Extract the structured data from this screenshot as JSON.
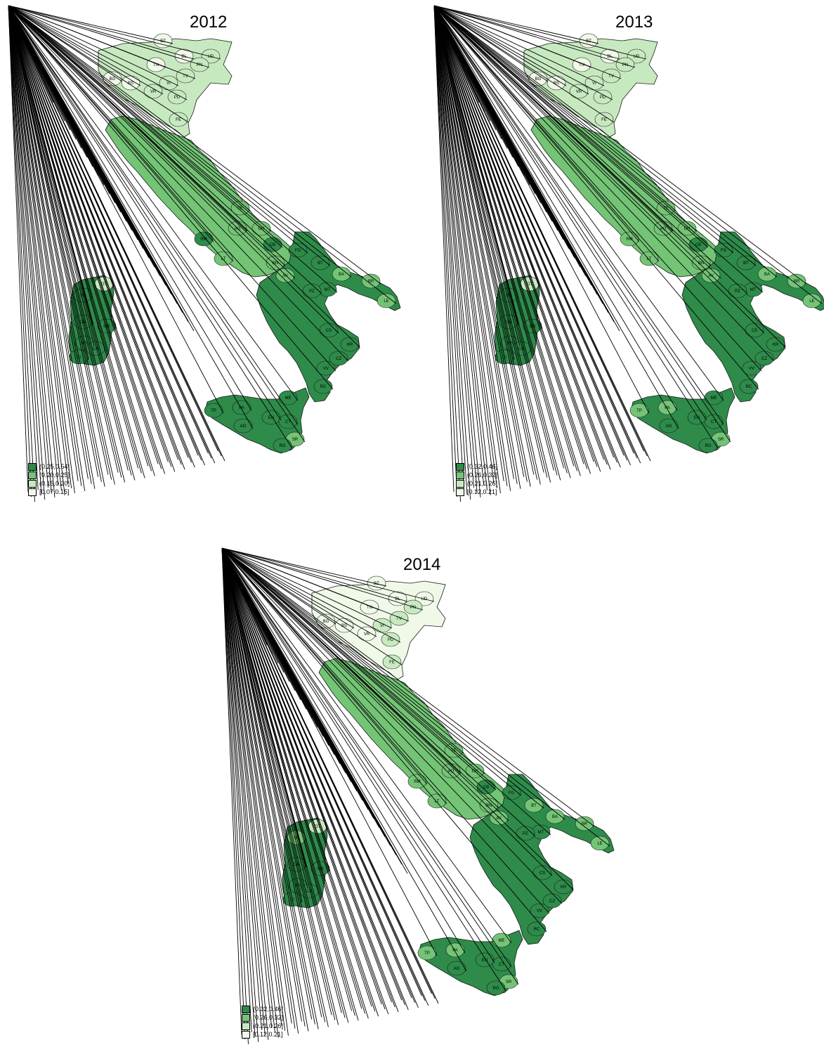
{
  "palette": [
    "#2e8b4a",
    "#74c476",
    "#c7e9c0",
    "#f0f9e8"
  ],
  "panels": [
    {
      "year": "2012",
      "legend": [
        "(0.25,0.54]",
        "(0.20,0.25]",
        "(0.15,0.20]",
        "[0.07,0.15]"
      ],
      "class_by_province": {
        "BZ": 3,
        "BL": 3,
        "UD": 2,
        "PN": 2,
        "TN": 3,
        "TV": 2,
        "VI": 2,
        "VR": 2,
        "PD": 2,
        "BG": 3,
        "BS": 3,
        "FE": 2,
        "AQ": 1,
        "CH": 1,
        "TE": 1,
        "FG": 0,
        "BT": 0,
        "BA": 1,
        "BR": 1,
        "LE": 1,
        "MT": 0,
        "PZ": 0,
        "CS": 0,
        "KR": 0,
        "CZ": 0,
        "VV": 0,
        "RC": 0,
        "ME": 0,
        "TP": 0,
        "PA": 0,
        "AG": 0,
        "EN": 0,
        "CT": 0,
        "SR": 1,
        "RG": 0,
        "SS": 0,
        "OT": 2,
        "OR": 0,
        "OG": 0,
        "VS": 0,
        "CA": 0,
        "CI": 0,
        "RM": 0,
        "LT": 1,
        "BN": 1,
        "AV": 1,
        "CB": 0
      }
    },
    {
      "year": "2013",
      "legend": [
        "(0.32,0.46]",
        "(0.26,0.32]",
        "(0.21,0.26]",
        "[0.12,0.21]"
      ],
      "class_by_province": {
        "BZ": 3,
        "BL": 3,
        "UD": 2,
        "PN": 2,
        "TN": 3,
        "TV": 2,
        "VI": 2,
        "VR": 2,
        "PD": 2,
        "BG": 3,
        "BS": 3,
        "FE": 2,
        "AQ": 1,
        "CH": 1,
        "TE": 1,
        "FG": 0,
        "BT": 0,
        "BA": 1,
        "BR": 1,
        "LE": 1,
        "MT": 0,
        "PZ": 0,
        "CS": 0,
        "KR": 0,
        "CZ": 0,
        "VV": 0,
        "RC": 0,
        "ME": 0,
        "TP": 1,
        "PA": 1,
        "AG": 0,
        "EN": 0,
        "CT": 0,
        "SR": 1,
        "RG": 0,
        "SS": 0,
        "OT": 2,
        "OR": 0,
        "OG": 0,
        "VS": 0,
        "CA": 0,
        "CI": 0,
        "RM": 1,
        "LT": 1,
        "BN": 1,
        "AV": 1,
        "CB": 0
      }
    },
    {
      "year": "2014",
      "legend": [
        "(0.32,0.46]",
        "(0.26,0.32]",
        "(0.21,0.26]",
        "[0.12,0.21]"
      ],
      "class_by_province": {
        "BZ": 3,
        "BL": 3,
        "UD": 3,
        "PN": 2,
        "TN": 3,
        "TV": 2,
        "VI": 2,
        "VR": 3,
        "PD": 2,
        "BG": 3,
        "BS": 3,
        "FE": 2,
        "AQ": 1,
        "CH": 1,
        "TE": 1,
        "FG": 0,
        "BT": 1,
        "BA": 1,
        "BR": 1,
        "LE": 1,
        "MT": 0,
        "PZ": 0,
        "CS": 0,
        "KR": 0,
        "CZ": 0,
        "VV": 0,
        "RC": 0,
        "ME": 1,
        "TP": 1,
        "PA": 1,
        "AG": 0,
        "EN": 0,
        "CT": 0,
        "SR": 1,
        "RG": 0,
        "SS": 1,
        "OT": 2,
        "OR": 0,
        "OG": 0,
        "VS": 0,
        "CA": 0,
        "CI": 0,
        "RM": 1,
        "LT": 1,
        "BN": 1,
        "AV": 1,
        "CB": 0
      }
    }
  ]
}
